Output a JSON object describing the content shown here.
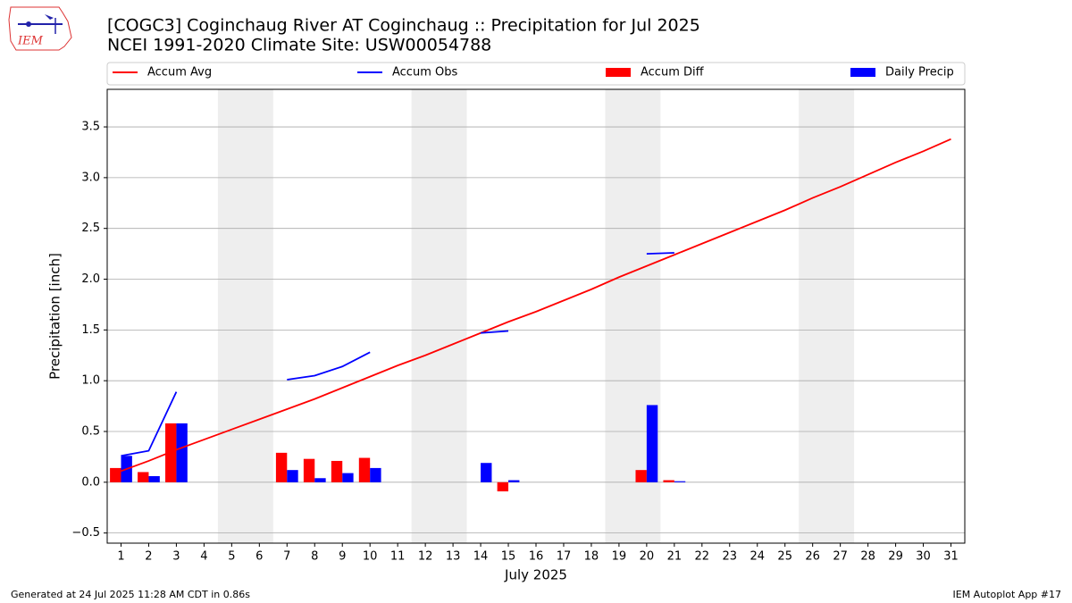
{
  "chart_data": {
    "type": "bar_line",
    "title": "[COGC3] Coginchaug River  AT Coginchaug :: Precipitation for Jul 2025",
    "subtitle": "NCEI 1991-2020 Climate Site: USW00054788",
    "y_label": "Precipitation [inch]",
    "x_label": "July 2025",
    "footer_left": "Generated at 24 Jul 2025 11:28 AM CDT in 0.86s",
    "footer_right": "IEM Autoplot App #17",
    "logo_text": "IEM",
    "categories": [
      "1",
      "2",
      "3",
      "4",
      "5",
      "6",
      "7",
      "8",
      "9",
      "10",
      "11",
      "12",
      "13",
      "14",
      "15",
      "16",
      "17",
      "18",
      "19",
      "20",
      "21",
      "22",
      "23",
      "24",
      "25",
      "26",
      "27",
      "28",
      "29",
      "30",
      "31"
    ],
    "xlim": [
      0.5,
      31.5
    ],
    "ylim": [
      -0.6,
      3.87
    ],
    "yticks": [
      {
        "value": -0.5,
        "label": "−0.5"
      },
      {
        "value": 0,
        "label": "0.0"
      },
      0.5,
      {
        "value": 1,
        "label": "1.0"
      },
      1.5,
      {
        "value": 2,
        "label": "2.0"
      },
      2.5,
      {
        "value": 3,
        "label": "3.0"
      },
      3.5
    ],
    "grid": true,
    "shaded_ranges": [
      [
        4.5,
        6.5
      ],
      [
        11.5,
        13.5
      ],
      [
        18.5,
        20.5
      ],
      [
        25.5,
        27.5
      ]
    ],
    "shade_color": "#eeeeee",
    "legend": "top",
    "series": [
      {
        "name": "Accum Avg",
        "kind": "line",
        "color": "#ff0000",
        "values": [
          0.11,
          0.21,
          0.32,
          0.42,
          0.52,
          0.62,
          0.72,
          0.82,
          0.93,
          1.04,
          1.15,
          1.25,
          1.36,
          1.47,
          1.58,
          1.68,
          1.79,
          1.9,
          2.02,
          2.13,
          2.24,
          2.35,
          2.46,
          2.57,
          2.68,
          2.8,
          2.91,
          3.03,
          3.15,
          3.26,
          3.38
        ]
      },
      {
        "name": "Accum Obs",
        "kind": "line",
        "color": "#0000ff",
        "values": [
          0.26,
          0.31,
          0.89,
          null,
          null,
          null,
          1.01,
          1.05,
          1.14,
          1.28,
          null,
          null,
          null,
          1.47,
          1.49,
          null,
          null,
          null,
          null,
          2.25,
          2.26,
          null,
          null,
          null,
          null,
          null,
          null,
          null,
          null,
          null,
          null
        ]
      },
      {
        "name": "Accum Diff",
        "kind": "bar",
        "color": "#ff0000",
        "values": [
          0.14,
          0.1,
          0.58,
          null,
          null,
          null,
          0.29,
          0.23,
          0.21,
          0.24,
          null,
          null,
          null,
          0.0,
          -0.09,
          null,
          null,
          null,
          null,
          0.12,
          0.02,
          null,
          null,
          null,
          null,
          null,
          null,
          null,
          null,
          null,
          null
        ]
      },
      {
        "name": "Daily Precip",
        "kind": "bar",
        "color": "#0000ff",
        "values": [
          0.26,
          0.06,
          0.58,
          null,
          null,
          null,
          0.12,
          0.04,
          0.09,
          0.14,
          null,
          null,
          null,
          0.19,
          0.02,
          null,
          null,
          null,
          null,
          0.76,
          0.01,
          null,
          null,
          null,
          null,
          null,
          null,
          null,
          null,
          null,
          null
        ]
      }
    ]
  }
}
